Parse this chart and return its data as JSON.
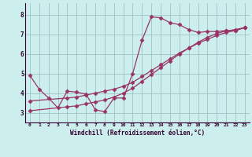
{
  "title": "",
  "xlabel": "Windchill (Refroidissement éolien,°C)",
  "ylabel": "",
  "bg_color": "#cceeed",
  "line_color": "#993366",
  "grid_color": "#99bbbb",
  "xlim": [
    -0.5,
    23.5
  ],
  "ylim": [
    2.5,
    8.6
  ],
  "xticks": [
    0,
    1,
    2,
    3,
    4,
    5,
    6,
    7,
    8,
    9,
    10,
    11,
    12,
    13,
    14,
    15,
    16,
    17,
    18,
    19,
    20,
    21,
    22,
    23
  ],
  "yticks": [
    3,
    4,
    5,
    6,
    7,
    8
  ],
  "line1_x": [
    0,
    1,
    2,
    3,
    4,
    5,
    6,
    7,
    8,
    9,
    10,
    11,
    12,
    13,
    14,
    15,
    16,
    17,
    18,
    19,
    20,
    21,
    22,
    23
  ],
  "line1_y": [
    4.9,
    4.2,
    3.75,
    3.25,
    4.1,
    4.05,
    3.95,
    3.15,
    3.05,
    3.75,
    3.75,
    5.0,
    6.7,
    7.9,
    7.85,
    7.6,
    7.5,
    7.25,
    7.1,
    7.15,
    7.15,
    7.2,
    7.2,
    7.35
  ],
  "line2_x": [
    0,
    4,
    5,
    6,
    7,
    8,
    9,
    10,
    11,
    12,
    13,
    14,
    15,
    16,
    17,
    18,
    19,
    20,
    21,
    22,
    23
  ],
  "line2_y": [
    3.6,
    3.75,
    3.8,
    3.9,
    4.0,
    4.1,
    4.2,
    4.35,
    4.55,
    4.85,
    5.15,
    5.45,
    5.75,
    6.05,
    6.3,
    6.55,
    6.75,
    6.95,
    7.1,
    7.2,
    7.35
  ],
  "line3_x": [
    0,
    4,
    5,
    6,
    7,
    8,
    9,
    10,
    11,
    12,
    13,
    14,
    15,
    16,
    17,
    18,
    19,
    20,
    21,
    22,
    23
  ],
  "line3_y": [
    3.1,
    3.3,
    3.35,
    3.45,
    3.55,
    3.65,
    3.8,
    4.0,
    4.25,
    4.6,
    4.95,
    5.3,
    5.65,
    6.0,
    6.3,
    6.6,
    6.85,
    7.05,
    7.18,
    7.25,
    7.35
  ]
}
